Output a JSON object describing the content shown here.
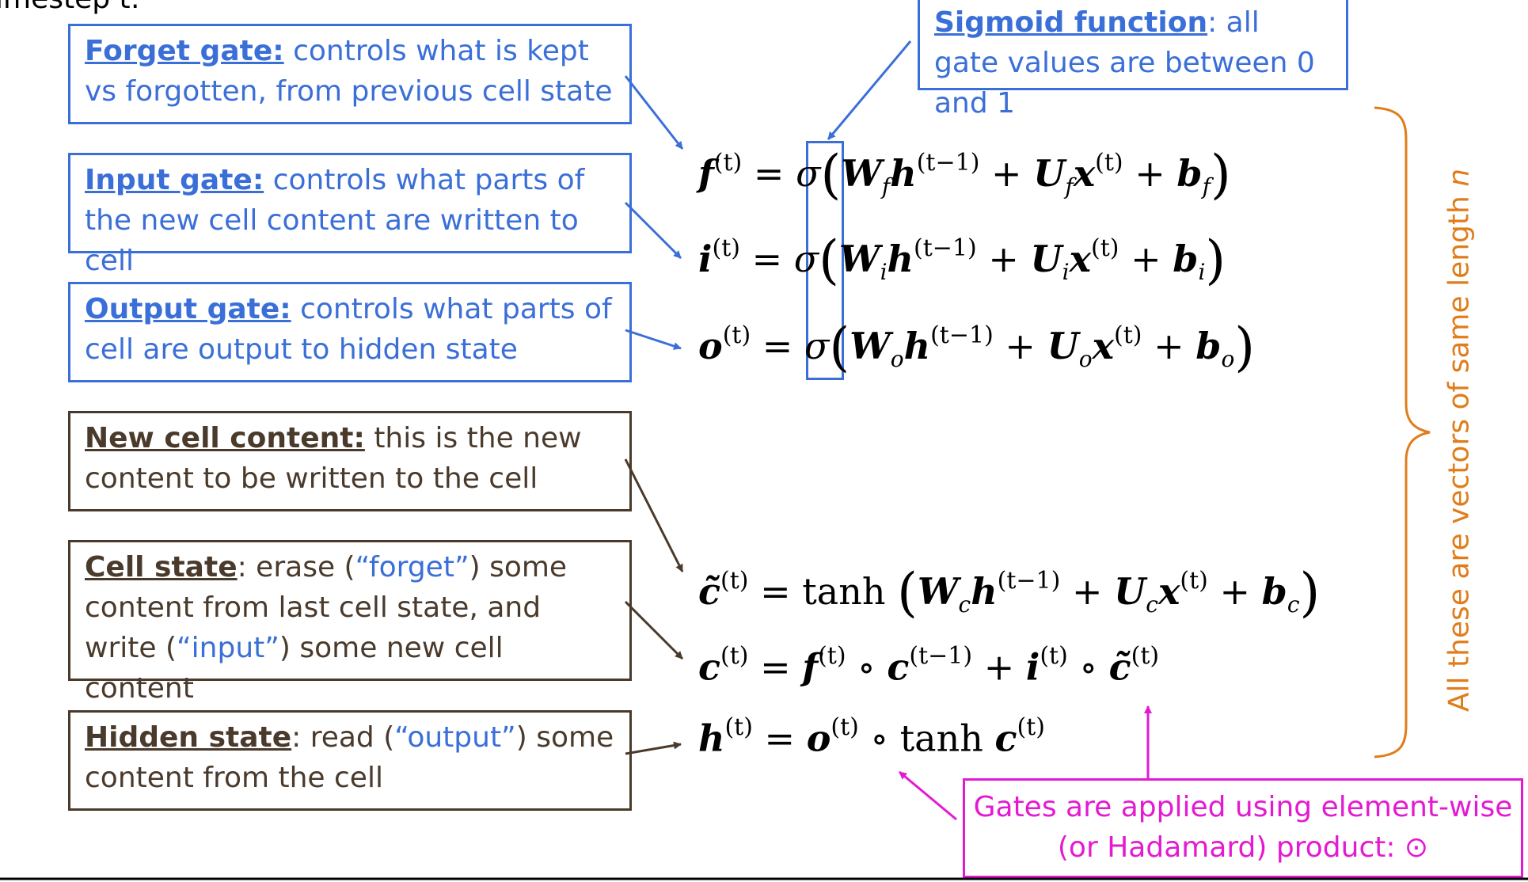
{
  "top_cut_text": "imestep t:",
  "annotations": {
    "forget": {
      "title": "Forget gate:",
      "text": " controls what is kept vs forgotten, from previous cell state"
    },
    "input": {
      "title": "Input gate:",
      "text": " controls what parts of the new cell content are written to cell"
    },
    "output": {
      "title": "Output gate:",
      "text": " controls what parts of cell are output to hidden state"
    },
    "newcell": {
      "title": "New cell content:",
      "text": " this is the new content to be written to the cell"
    },
    "cellstate": {
      "title": "Cell state",
      "t1": ": erase (",
      "q1": "“forget”",
      "t2": ") some content from last cell state, and write (",
      "q2": "“input”",
      "t3": ") some new cell content"
    },
    "hidden": {
      "title": "Hidden state",
      "t1": ": read (",
      "q1": "“output”",
      "t2": ") some content from the cell"
    },
    "sigmoid": {
      "title": "Sigmoid function",
      "text": ": all gate values are between 0 and 1"
    },
    "hadamard": {
      "text": "Gates are applied using element-wise (or Hadamard) product: ⊙"
    }
  },
  "vertical_label": {
    "text": "All these are vectors of same length ",
    "var": "n"
  },
  "equations": {
    "f": {
      "lhs": "f",
      "sup": "(t)",
      "func": "σ",
      "W": "W",
      "wsub": "f",
      "h": "h",
      "hsup": "(t−1)",
      "U": "U",
      "usub": "f",
      "x": "x",
      "xsup": "(t)",
      "b": "b",
      "bsub": "f"
    },
    "i": {
      "lhs": "i",
      "sup": "(t)",
      "func": "σ",
      "W": "W",
      "wsub": "i",
      "h": "h",
      "hsup": "(t−1)",
      "U": "U",
      "usub": "i",
      "x": "x",
      "xsup": "(t)",
      "b": "b",
      "bsub": "i"
    },
    "o": {
      "lhs": "o",
      "sup": "(t)",
      "func": "σ",
      "W": "W",
      "wsub": "o",
      "h": "h",
      "hsup": "(t−1)",
      "U": "U",
      "usub": "o",
      "x": "x",
      "xsup": "(t)",
      "b": "b",
      "bsub": "o"
    },
    "ctilde": {
      "lhs": "c̃",
      "sup": "(t)",
      "func": "tanh",
      "W": "W",
      "wsub": "c",
      "h": "h",
      "hsup": "(t−1)",
      "U": "U",
      "usub": "c",
      "x": "x",
      "xsup": "(t)",
      "b": "b",
      "bsub": "c"
    },
    "c": {
      "lhs": "c",
      "sup": "(t)",
      "f": "f",
      "fsup": "(t)",
      "c_prev": "c",
      "c_prev_sup": "(t−1)",
      "i": "i",
      "isup": "(t)",
      "ct": "c̃",
      "ctsup": "(t)"
    },
    "h": {
      "lhs": "h",
      "sup": "(t)",
      "o": "o",
      "osup": "(t)",
      "func": "tanh",
      "c": "c",
      "csup": "(t)"
    }
  },
  "symbols": {
    "eq": "=",
    "plus": "+",
    "circ": "∘"
  },
  "colors": {
    "blue": "#3b6fd8",
    "brown": "#4a3a2c",
    "orange": "#e07d1a",
    "magenta": "#e41ad2"
  }
}
